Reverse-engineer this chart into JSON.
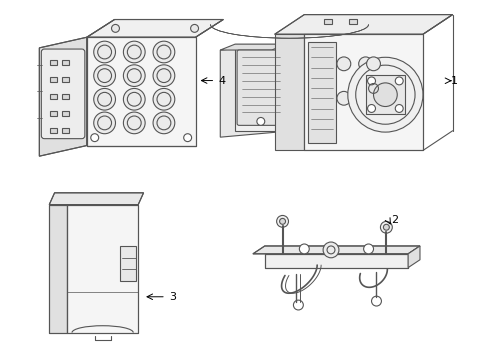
{
  "background_color": "#ffffff",
  "line_color": "#555555",
  "line_width": 0.8,
  "fig_width": 4.89,
  "fig_height": 3.6,
  "dpi": 100
}
